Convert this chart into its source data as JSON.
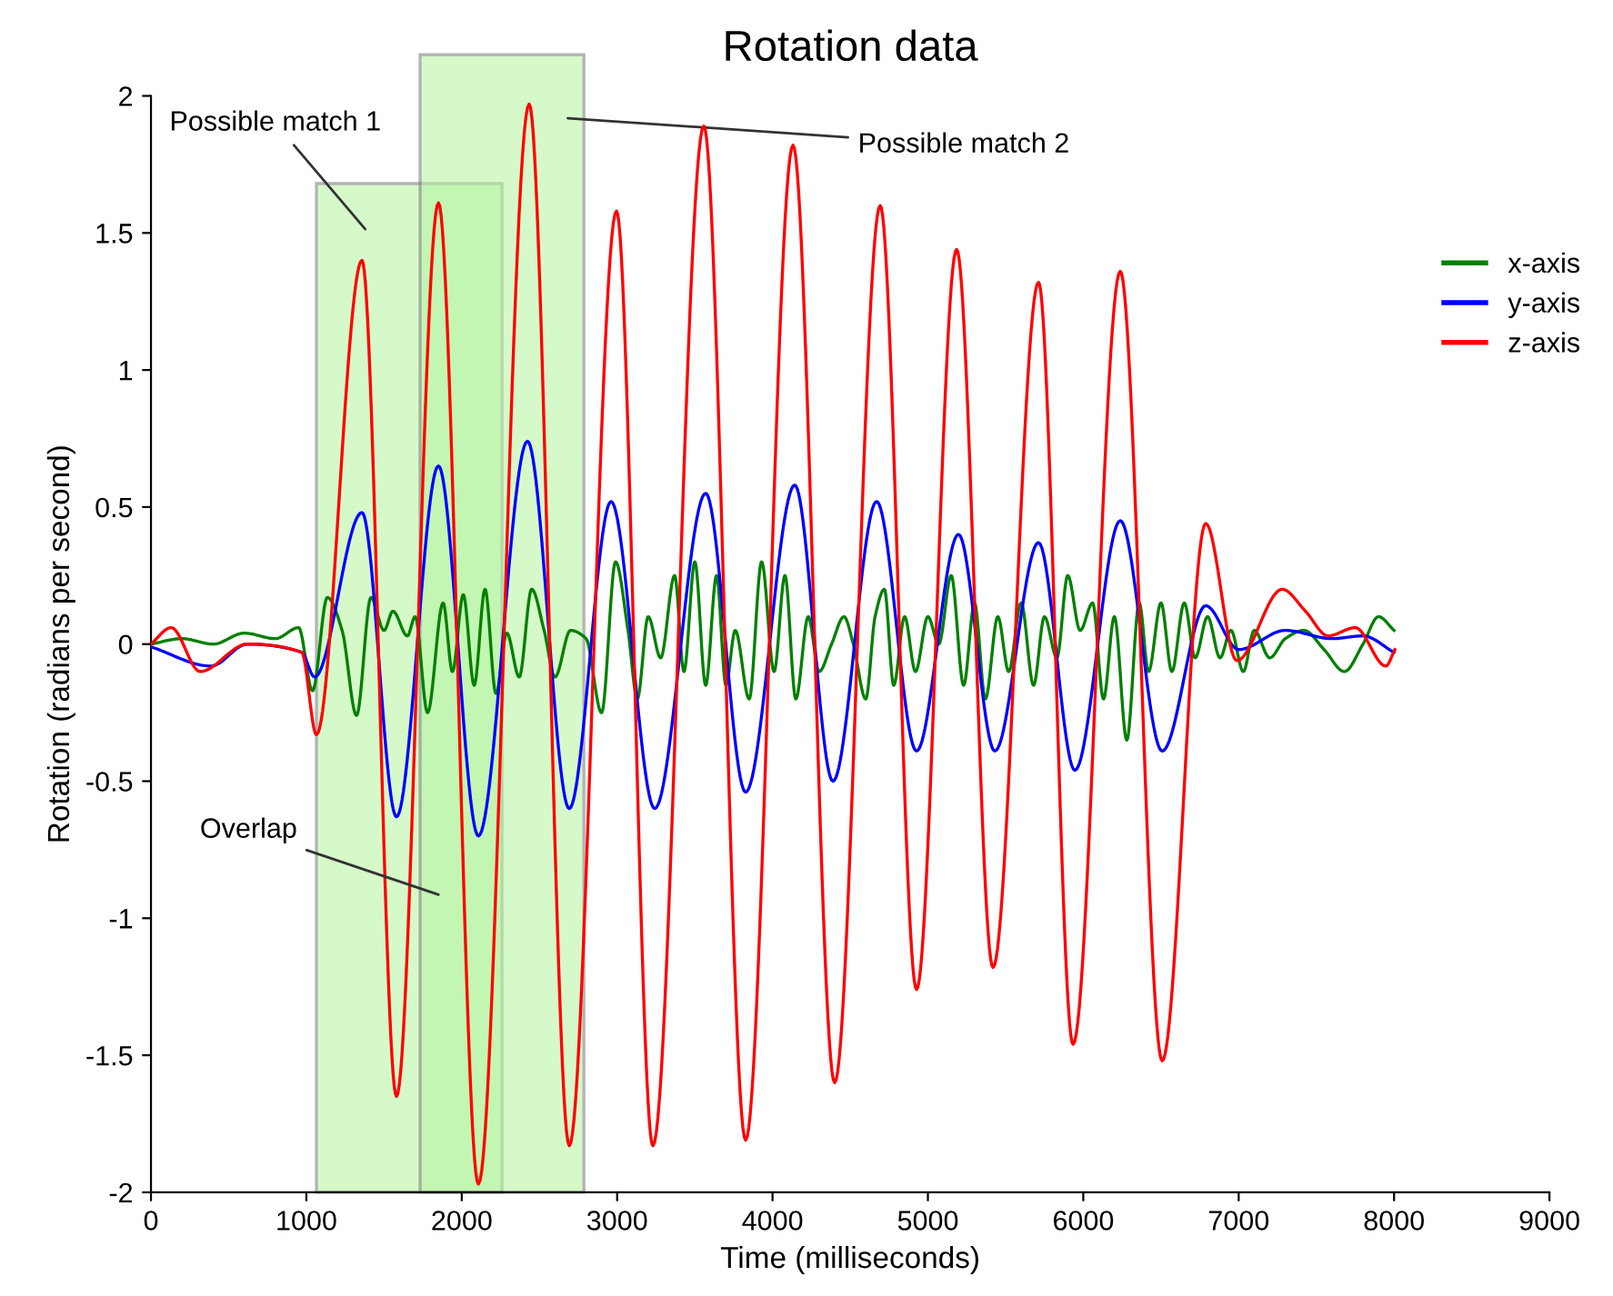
{
  "chart_data": {
    "type": "line",
    "title": "Rotation data",
    "xlabel": "Time (milliseconds)",
    "ylabel": "Rotation (radians per second)",
    "xlim": [
      0,
      9000
    ],
    "xticks": [
      0,
      1000,
      2000,
      3000,
      4000,
      5000,
      6000,
      7000,
      8000,
      9000
    ],
    "ylim": [
      -2,
      2
    ],
    "yticks": [
      -2,
      -1.5,
      -1,
      -0.5,
      0,
      0.5,
      1,
      1.5,
      2
    ],
    "grid": false,
    "legend": "top right",
    "marker": "none",
    "line_style": "solid",
    "series": [
      {
        "name": "x-axis",
        "color": "#008000",
        "x": [
          0,
          200,
          400,
          600,
          800,
          950,
          1040,
          1135,
          1230,
          1323,
          1416,
          1500,
          1557,
          1650,
          1700,
          1780,
          1880,
          1940,
          2010,
          2080,
          2150,
          2220,
          2290,
          2370,
          2450,
          2530,
          2600,
          2700,
          2800,
          2900,
          2990,
          3070,
          3130,
          3200,
          3280,
          3370,
          3430,
          3500,
          3570,
          3640,
          3700,
          3760,
          3850,
          3930,
          4010,
          4080,
          4150,
          4230,
          4300,
          4380,
          4460,
          4520,
          4600,
          4660,
          4720,
          4780,
          4850,
          4920,
          5000,
          5070,
          5150,
          5230,
          5300,
          5370,
          5450,
          5520,
          5600,
          5680,
          5750,
          5830,
          5900,
          5980,
          6060,
          6130,
          6200,
          6280,
          6360,
          6420,
          6500,
          6570,
          6650,
          6720,
          6800,
          6880,
          6950,
          7030,
          7100,
          7200,
          7300,
          7420,
          7550,
          7680,
          7800,
          7900,
          8000
        ],
        "values": [
          0,
          0.02,
          0,
          0.04,
          0.02,
          0.06,
          -0.17,
          0.17,
          0.05,
          -0.26,
          0.17,
          0.05,
          0.12,
          0.03,
          0.1,
          -0.25,
          0.15,
          -0.1,
          0.18,
          -0.15,
          0.2,
          -0.18,
          0.04,
          -0.12,
          0.2,
          0.05,
          -0.12,
          0.05,
          0.02,
          -0.25,
          0.3,
          0.05,
          -0.2,
          0.1,
          -0.05,
          0.25,
          -0.1,
          0.3,
          -0.15,
          0.25,
          -0.15,
          0.05,
          -0.2,
          0.3,
          -0.1,
          0.25,
          -0.2,
          0.1,
          -0.1,
          0,
          0.1,
          0,
          -0.2,
          0.1,
          0.2,
          -0.15,
          0.1,
          -0.1,
          0.1,
          0,
          0.25,
          -0.15,
          0.15,
          -0.2,
          0.1,
          -0.1,
          0.15,
          -0.15,
          0.1,
          -0.05,
          0.25,
          0.05,
          0.15,
          -0.2,
          0.1,
          -0.35,
          0.15,
          -0.1,
          0.15,
          -0.1,
          0.15,
          -0.05,
          0.1,
          -0.05,
          0.05,
          -0.1,
          0.05,
          -0.05,
          0.02,
          0.05,
          -0.02,
          -0.1,
          0,
          0.1,
          0.05
        ]
      },
      {
        "name": "y-axis",
        "color": "#0000ff",
        "x": [
          0,
          386,
          620,
          970,
          1053,
          1358,
          1580,
          1850,
          2107,
          2423,
          2692,
          2961,
          3242,
          3570,
          3827,
          4143,
          4389,
          4670,
          4927,
          5197,
          5431,
          5712,
          5946,
          6238,
          6508,
          6788,
          7000,
          7300,
          7600,
          7800,
          8000
        ],
        "values": [
          -0.01,
          -0.08,
          0,
          -0.03,
          -0.12,
          0.48,
          -0.63,
          0.65,
          -0.7,
          0.74,
          -0.6,
          0.52,
          -0.6,
          0.55,
          -0.54,
          0.58,
          -0.5,
          0.52,
          -0.39,
          0.4,
          -0.39,
          0.37,
          -0.46,
          0.45,
          -0.39,
          0.14,
          -0.02,
          0.05,
          0.02,
          0.03,
          -0.03
        ]
      },
      {
        "name": "z-axis",
        "color": "#ff0000",
        "x": [
          0,
          130,
          316,
          620,
          970,
          1065,
          1358,
          1580,
          1850,
          2107,
          2434,
          2692,
          2996,
          3230,
          3558,
          3827,
          4132,
          4400,
          4693,
          4927,
          5185,
          5419,
          5712,
          5934,
          6238,
          6508,
          6788,
          6988,
          7280,
          7430,
          7575,
          7750,
          7947,
          8005
        ],
        "values": [
          0,
          0.06,
          -0.1,
          0,
          -0.03,
          -0.33,
          1.4,
          -1.65,
          1.61,
          -1.97,
          1.97,
          -1.83,
          1.58,
          -1.83,
          1.89,
          -1.81,
          1.82,
          -1.6,
          1.6,
          -1.26,
          1.44,
          -1.18,
          1.32,
          -1.46,
          1.36,
          -1.52,
          0.44,
          -0.06,
          0.2,
          0.12,
          0.03,
          0.06,
          -0.08,
          -0.02
        ]
      }
    ],
    "bands": [
      {
        "axis": "x",
        "from": 1065,
        "to": 2259,
        "label": "Possible match 1",
        "color": "#b5f5a0"
      },
      {
        "axis": "x",
        "from": 1732,
        "to": 2786,
        "label": "Possible match 2",
        "color": "#b5f5a0"
      }
    ],
    "annotations": [
      "Overlap"
    ]
  }
}
